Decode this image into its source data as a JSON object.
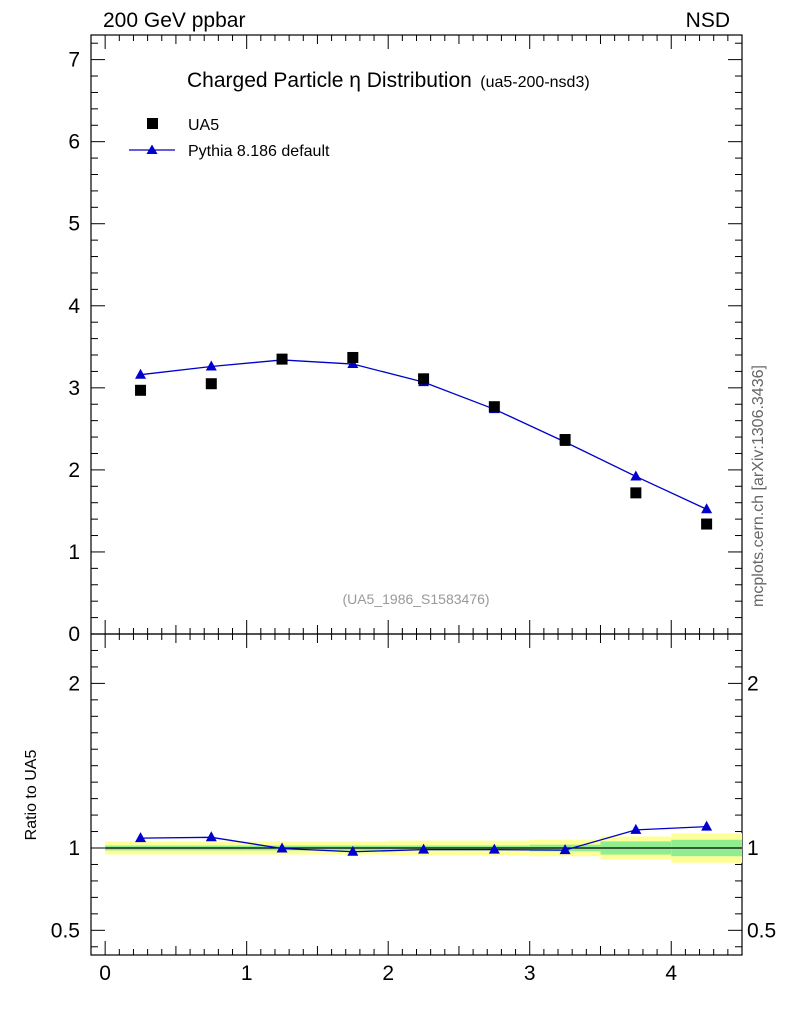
{
  "header": {
    "left": "200 GeV ppbar",
    "right": "NSD"
  },
  "title": {
    "main": "Charged Particle η Distribution",
    "sub": "(ua5-200-nsd3)"
  },
  "watermark": "mcplots.cern.ch [arXiv:1306.3436]",
  "analysis_label": "(UA5_1986_S1583476)",
  "ratio_ylabel": "Ratio to UA5",
  "legend": [
    {
      "label": "UA5",
      "marker": "square",
      "color": "#000000"
    },
    {
      "label": "Pythia 8.186 default",
      "marker": "triangle",
      "color": "#0000cc"
    }
  ],
  "colors": {
    "data": "#000000",
    "mc": "#0000cc",
    "band_inner": "#90ee90",
    "band_outer": "#ffff99"
  },
  "chart_data": [
    {
      "type": "scatter",
      "panel": "main",
      "xlim": [
        -0.1,
        4.5
      ],
      "ylim": [
        0,
        7.3
      ],
      "yticks": [
        0,
        1,
        2,
        3,
        4,
        5,
        6,
        7
      ],
      "grid": false,
      "legend_position": "top-left",
      "x": [
        0.25,
        0.75,
        1.25,
        1.75,
        2.25,
        2.75,
        3.25,
        3.75,
        4.25
      ],
      "series": [
        {
          "name": "UA5",
          "values": [
            2.97,
            3.05,
            3.35,
            3.37,
            3.11,
            2.77,
            2.37,
            1.72,
            1.34
          ]
        },
        {
          "name": "Pythia 8.186 default",
          "values": [
            3.16,
            3.26,
            3.34,
            3.29,
            3.07,
            2.74,
            2.34,
            1.92,
            1.52
          ]
        }
      ]
    },
    {
      "type": "line",
      "panel": "ratio",
      "xlim": [
        -0.1,
        4.5
      ],
      "ylim": [
        0.35,
        2.3
      ],
      "yticks": [
        0.5,
        1,
        2
      ],
      "xticks": [
        0,
        1,
        2,
        3,
        4
      ],
      "reference": 1,
      "x": [
        0.25,
        0.75,
        1.25,
        1.75,
        2.25,
        2.75,
        3.25,
        3.75,
        4.25
      ],
      "bins": [
        [
          -0.1,
          1.0
        ],
        [
          1.0,
          2.0
        ],
        [
          2.0,
          2.5
        ],
        [
          2.5,
          3.0
        ],
        [
          3.0,
          3.5
        ],
        [
          3.5,
          4.0
        ],
        [
          4.0,
          4.5
        ]
      ],
      "band_inner": [
        0.015,
        0.015,
        0.015,
        0.015,
        0.02,
        0.04,
        0.05
      ],
      "band_outer": [
        0.04,
        0.04,
        0.045,
        0.045,
        0.05,
        0.07,
        0.09
      ],
      "series": [
        {
          "name": "Pythia 8.186 default",
          "values": [
            1.06,
            1.065,
            0.997,
            0.977,
            0.99,
            0.99,
            0.987,
            1.11,
            1.13
          ]
        }
      ]
    }
  ]
}
